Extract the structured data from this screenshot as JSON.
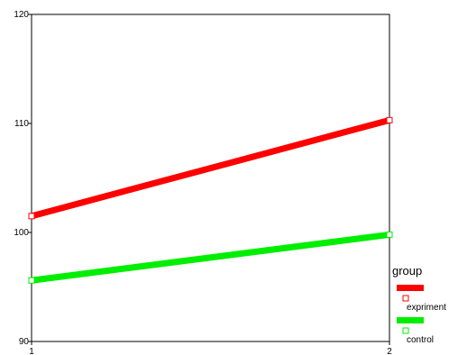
{
  "chart_data": {
    "type": "line",
    "title": "",
    "xlabel": "",
    "ylabel": "",
    "x": [
      1,
      2
    ],
    "x_tick_labels": [
      "1",
      "2"
    ],
    "ylim": [
      90,
      120
    ],
    "y_ticks": [
      90,
      100,
      110,
      120
    ],
    "y_tick_labels": [
      "90",
      "100",
      "110",
      "120"
    ],
    "grid": false,
    "legend": {
      "title": "group",
      "placement": "bottom-right"
    },
    "series": [
      {
        "name": "expriment",
        "values": [
          101.5,
          110.3
        ],
        "color": "#ff0000"
      },
      {
        "name": "control",
        "values": [
          95.6,
          99.8
        ],
        "color": "#00ee00"
      }
    ]
  }
}
